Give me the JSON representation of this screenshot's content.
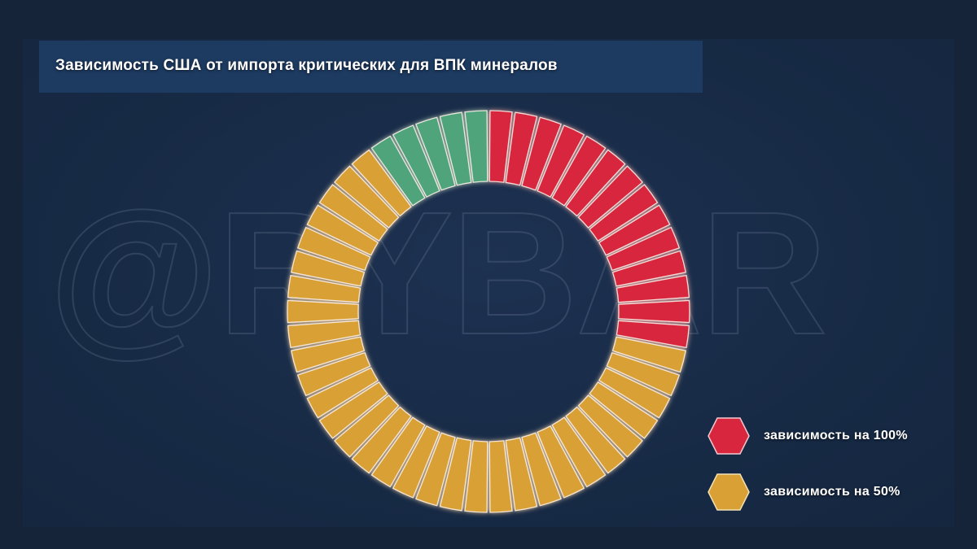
{
  "title": "Зависимость США от импорта критических для ВПК минералов",
  "watermark": "@RYBAR",
  "chart_data": {
    "type": "pie",
    "style": "segmented-donut",
    "start": "top",
    "direction": "clockwise",
    "segments": [
      {
        "category": "зависимость на 100%",
        "count": 14,
        "color": "#d7263d"
      },
      {
        "category": "зависимость на 50%",
        "count": 31,
        "color": "#d9a035"
      },
      {
        "category": "",
        "count": 5,
        "color": "#4fa47c"
      }
    ],
    "legend": {
      "placement": "bottom-right",
      "entries": [
        {
          "label": "зависимость на 100%",
          "color": "#d7263d",
          "icon": "hexagon-icon"
        },
        {
          "label": "зависимость на 50%",
          "color": "#d9a035",
          "icon": "hexagon-icon"
        }
      ]
    }
  }
}
